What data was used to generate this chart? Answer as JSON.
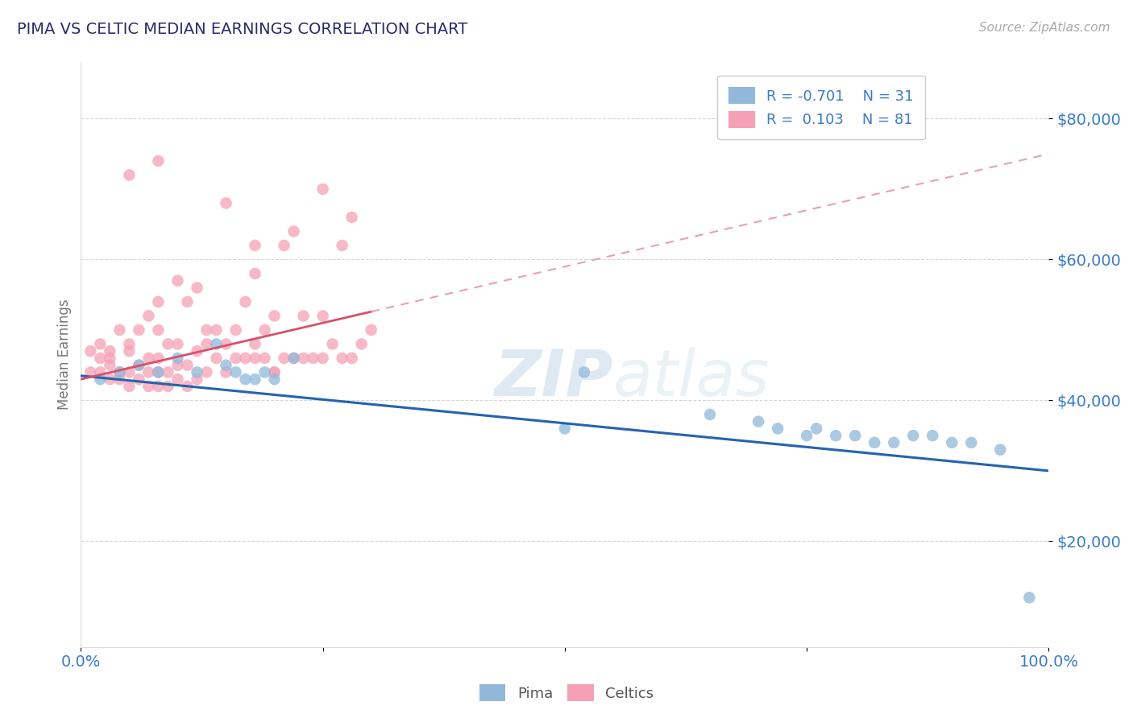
{
  "title": "PIMA VS CELTIC MEDIAN EARNINGS CORRELATION CHART",
  "source": "Source: ZipAtlas.com",
  "ylabel": "Median Earnings",
  "ytick_labels": [
    "$20,000",
    "$40,000",
    "$60,000",
    "$80,000"
  ],
  "ytick_values": [
    20000,
    40000,
    60000,
    80000
  ],
  "xlim": [
    0.0,
    1.0
  ],
  "ylim": [
    5000,
    88000
  ],
  "pima_color": "#91b8d9",
  "celtics_color": "#f5a0b5",
  "pima_line_color": "#2563b0",
  "celtics_line_solid_color": "#d9506a",
  "celtics_line_dashed_color": "#e8a0b0",
  "pima_R": -0.701,
  "pima_N": 31,
  "celtics_R": 0.103,
  "celtics_N": 81,
  "watermark_zip": "ZIP",
  "watermark_atlas": "atlas",
  "background_color": "#ffffff",
  "grid_color": "#cccccc",
  "title_color": "#2a2a6a",
  "axis_label_color": "#777777",
  "tick_label_color": "#3a7bc8",
  "source_color": "#aaaaaa",
  "pima_x": [
    0.02,
    0.04,
    0.06,
    0.08,
    0.1,
    0.12,
    0.14,
    0.15,
    0.16,
    0.17,
    0.18,
    0.19,
    0.2,
    0.22,
    0.5,
    0.52,
    0.65,
    0.7,
    0.72,
    0.75,
    0.76,
    0.78,
    0.8,
    0.82,
    0.84,
    0.86,
    0.88,
    0.9,
    0.92,
    0.95,
    0.98
  ],
  "pima_y": [
    43000,
    44000,
    45000,
    44000,
    46000,
    44000,
    48000,
    45000,
    44000,
    43000,
    43000,
    44000,
    43000,
    46000,
    36000,
    44000,
    38000,
    37000,
    36000,
    35000,
    36000,
    35000,
    35000,
    34000,
    34000,
    35000,
    35000,
    34000,
    34000,
    33000,
    12000
  ],
  "celtics_x": [
    0.01,
    0.01,
    0.02,
    0.02,
    0.02,
    0.03,
    0.03,
    0.03,
    0.03,
    0.04,
    0.04,
    0.04,
    0.05,
    0.05,
    0.05,
    0.05,
    0.06,
    0.06,
    0.06,
    0.07,
    0.07,
    0.07,
    0.07,
    0.08,
    0.08,
    0.08,
    0.08,
    0.08,
    0.09,
    0.09,
    0.09,
    0.1,
    0.1,
    0.1,
    0.1,
    0.11,
    0.11,
    0.11,
    0.12,
    0.12,
    0.12,
    0.13,
    0.13,
    0.13,
    0.14,
    0.14,
    0.15,
    0.15,
    0.16,
    0.16,
    0.17,
    0.17,
    0.18,
    0.18,
    0.18,
    0.19,
    0.19,
    0.2,
    0.2,
    0.21,
    0.21,
    0.22,
    0.22,
    0.23,
    0.23,
    0.24,
    0.25,
    0.25,
    0.26,
    0.27,
    0.27,
    0.28,
    0.28,
    0.29,
    0.3,
    0.15,
    0.18,
    0.05,
    0.25,
    0.08,
    0.2
  ],
  "celtics_y": [
    44000,
    47000,
    44000,
    46000,
    48000,
    43000,
    45000,
    46000,
    47000,
    43000,
    44000,
    50000,
    42000,
    44000,
    47000,
    48000,
    43000,
    45000,
    50000,
    42000,
    44000,
    46000,
    52000,
    42000,
    44000,
    46000,
    50000,
    54000,
    42000,
    44000,
    48000,
    43000,
    45000,
    48000,
    57000,
    42000,
    45000,
    54000,
    43000,
    47000,
    56000,
    44000,
    48000,
    50000,
    46000,
    50000,
    44000,
    48000,
    46000,
    50000,
    46000,
    54000,
    46000,
    48000,
    58000,
    46000,
    50000,
    44000,
    52000,
    46000,
    62000,
    46000,
    64000,
    46000,
    52000,
    46000,
    46000,
    52000,
    48000,
    46000,
    62000,
    46000,
    66000,
    48000,
    50000,
    68000,
    62000,
    72000,
    70000,
    74000,
    44000
  ]
}
